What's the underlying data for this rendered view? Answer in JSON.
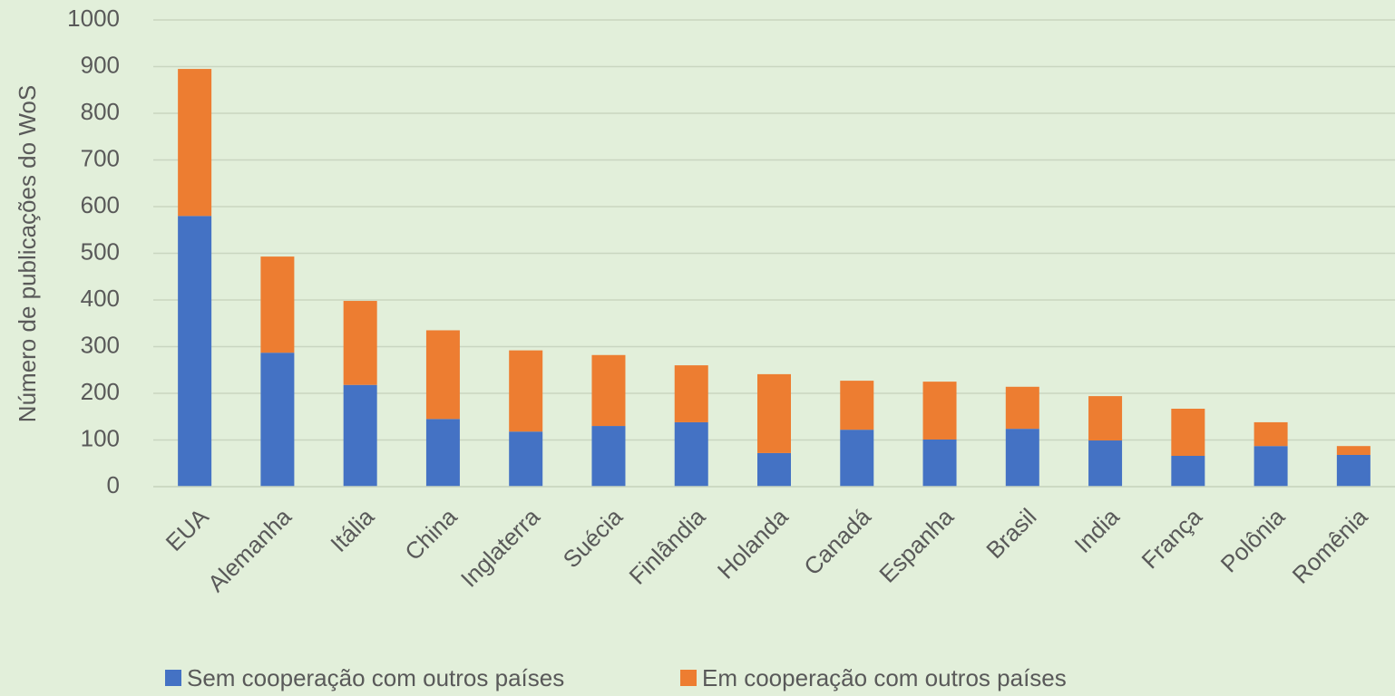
{
  "chart_data": {
    "type": "stacked_bar",
    "y_axis_label": "Número de publicações do WoS",
    "categories": [
      "EUA",
      "Alemanha",
      "Itália",
      "China",
      "Inglaterra",
      "Suécia",
      "Finlândia",
      "Holanda",
      "Canadá",
      "Espanha",
      "Brasil",
      "India",
      "França",
      "Polônia",
      "Romênia"
    ],
    "series": [
      {
        "name": "Sem cooperação com outros países",
        "color": "#4472c4",
        "values": [
          580,
          287,
          218,
          145,
          118,
          130,
          138,
          72,
          122,
          101,
          124,
          99,
          66,
          87,
          68
        ]
      },
      {
        "name": "Em cooperação com outros países",
        "color": "#ed7d31",
        "values": [
          315,
          206,
          180,
          190,
          174,
          152,
          122,
          169,
          105,
          124,
          90,
          95,
          101,
          51,
          19
        ]
      }
    ],
    "ylim": [
      0,
      1000
    ],
    "yticks": [
      0,
      100,
      200,
      300,
      400,
      500,
      600,
      700,
      800,
      900,
      1000
    ],
    "grid": true
  }
}
